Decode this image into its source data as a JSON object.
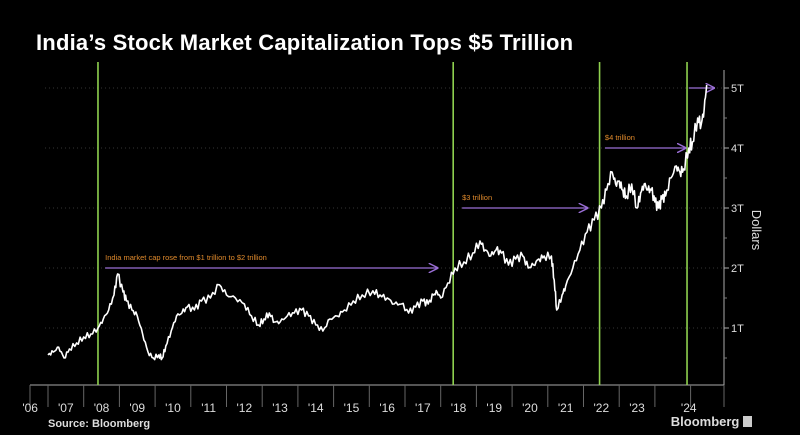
{
  "chart_data": {
    "type": "line",
    "title": "India’s Stock Market Capitalization Tops $5 Trillion",
    "ylabel": "Dollars",
    "xlim": [
      2006,
      2024.6
    ],
    "ylim": [
      0,
      5.2
    ],
    "yticks": [
      {
        "v": 1,
        "label": "1T"
      },
      {
        "v": 2,
        "label": "2T"
      },
      {
        "v": 3,
        "label": "3T"
      },
      {
        "v": 4,
        "label": "4T"
      },
      {
        "v": 5,
        "label": "5T"
      }
    ],
    "xticks": [
      "'06",
      "'07",
      "'08",
      "'09",
      "'10",
      "'11",
      "'12",
      "'13",
      "'14",
      "'15",
      "'16",
      "'17",
      "'18",
      "'19",
      "'20",
      "'21",
      "'22",
      "'23",
      "'24"
    ],
    "line_color": "#ffffff",
    "milestone_color": "#8fd14f",
    "arrow_color": "#9b6fd6",
    "annotation_color": "#e08a2c",
    "milestones": [
      2007.4,
      2017.35,
      2021.45,
      2023.9
    ],
    "annotations": [
      {
        "text": "India market cap rose from $1 trillion to $2 trillion",
        "from": 2007.6,
        "to": 2016.9,
        "y": 2.0
      },
      {
        "text": "$3 trillion",
        "from": 2017.6,
        "to": 2021.1,
        "y": 3.0
      },
      {
        "text": "$4 trillion",
        "from": 2021.6,
        "to": 2023.85,
        "y": 4.0
      },
      {
        "text": "",
        "from": 2023.95,
        "to": 2024.65,
        "y": 5.0
      }
    ],
    "series": [
      {
        "x": [
          2006.0,
          2006.15,
          2006.3,
          2006.45,
          2006.6,
          2006.8,
          2007.0,
          2007.2,
          2007.4,
          2007.55,
          2007.7,
          2007.85,
          2007.95,
          2008.1,
          2008.2,
          2008.35,
          2008.5,
          2008.65,
          2008.8,
          2008.95,
          2009.1,
          2009.2,
          2009.3,
          2009.45,
          2009.6,
          2009.75,
          2009.9,
          2010.1,
          2010.3,
          2010.55,
          2010.8,
          2011.0,
          2011.25,
          2011.5,
          2011.7,
          2011.9,
          2012.05,
          2012.2,
          2012.35,
          2012.5,
          2012.7,
          2012.9,
          2013.1,
          2013.3,
          2013.5,
          2013.7,
          2013.9,
          2014.1,
          2014.3,
          2014.55,
          2014.8,
          2015.1,
          2015.3,
          2015.5,
          2015.7,
          2015.9,
          2016.1,
          2016.3,
          2016.5,
          2016.65,
          2016.8,
          2016.9,
          2017.0,
          2017.2,
          2017.4,
          2017.65,
          2017.9,
          2018.1,
          2018.25,
          2018.4,
          2018.55,
          2018.7,
          2018.9,
          2019.1,
          2019.3,
          2019.45,
          2019.6,
          2019.75,
          2019.9,
          2020.1,
          2020.18,
          2020.25,
          2020.4,
          2020.5,
          2020.7,
          2020.9,
          2021.1,
          2021.3,
          2021.5,
          2021.65,
          2021.8,
          2021.9,
          2022.0,
          2022.1,
          2022.2,
          2022.35,
          2022.5,
          2022.6,
          2022.7,
          2022.8,
          2022.9,
          2023.0,
          2023.1,
          2023.2,
          2023.3,
          2023.45,
          2023.6,
          2023.7,
          2023.8,
          2023.95,
          2024.05,
          2024.2,
          2024.3,
          2024.38,
          2024.45
        ],
        "values": [
          0.55,
          0.6,
          0.68,
          0.5,
          0.65,
          0.75,
          0.85,
          0.9,
          1.0,
          1.15,
          1.3,
          1.55,
          1.9,
          1.6,
          1.45,
          1.3,
          1.2,
          0.9,
          0.6,
          0.5,
          0.55,
          0.5,
          0.7,
          0.95,
          1.2,
          1.25,
          1.35,
          1.3,
          1.45,
          1.5,
          1.72,
          1.55,
          1.5,
          1.4,
          1.2,
          1.05,
          1.15,
          1.25,
          1.1,
          1.1,
          1.2,
          1.25,
          1.3,
          1.2,
          1.05,
          0.95,
          1.15,
          1.2,
          1.3,
          1.45,
          1.55,
          1.62,
          1.55,
          1.5,
          1.4,
          1.4,
          1.25,
          1.35,
          1.45,
          1.4,
          1.55,
          1.6,
          1.5,
          1.75,
          2.0,
          2.1,
          2.25,
          2.45,
          2.3,
          2.2,
          2.3,
          2.25,
          2.05,
          2.15,
          2.2,
          2.0,
          2.05,
          2.15,
          2.2,
          2.2,
          1.8,
          1.3,
          1.55,
          1.7,
          2.0,
          2.3,
          2.6,
          2.8,
          3.0,
          3.3,
          3.6,
          3.4,
          3.45,
          3.3,
          3.2,
          3.4,
          3.0,
          3.25,
          3.4,
          3.3,
          3.3,
          3.1,
          3.0,
          3.15,
          3.2,
          3.5,
          3.7,
          3.6,
          3.65,
          4.0,
          4.1,
          4.5,
          4.4,
          4.65,
          5.05
        ]
      }
    ],
    "source": "Source: Bloomberg",
    "brand": "Bloomberg"
  }
}
